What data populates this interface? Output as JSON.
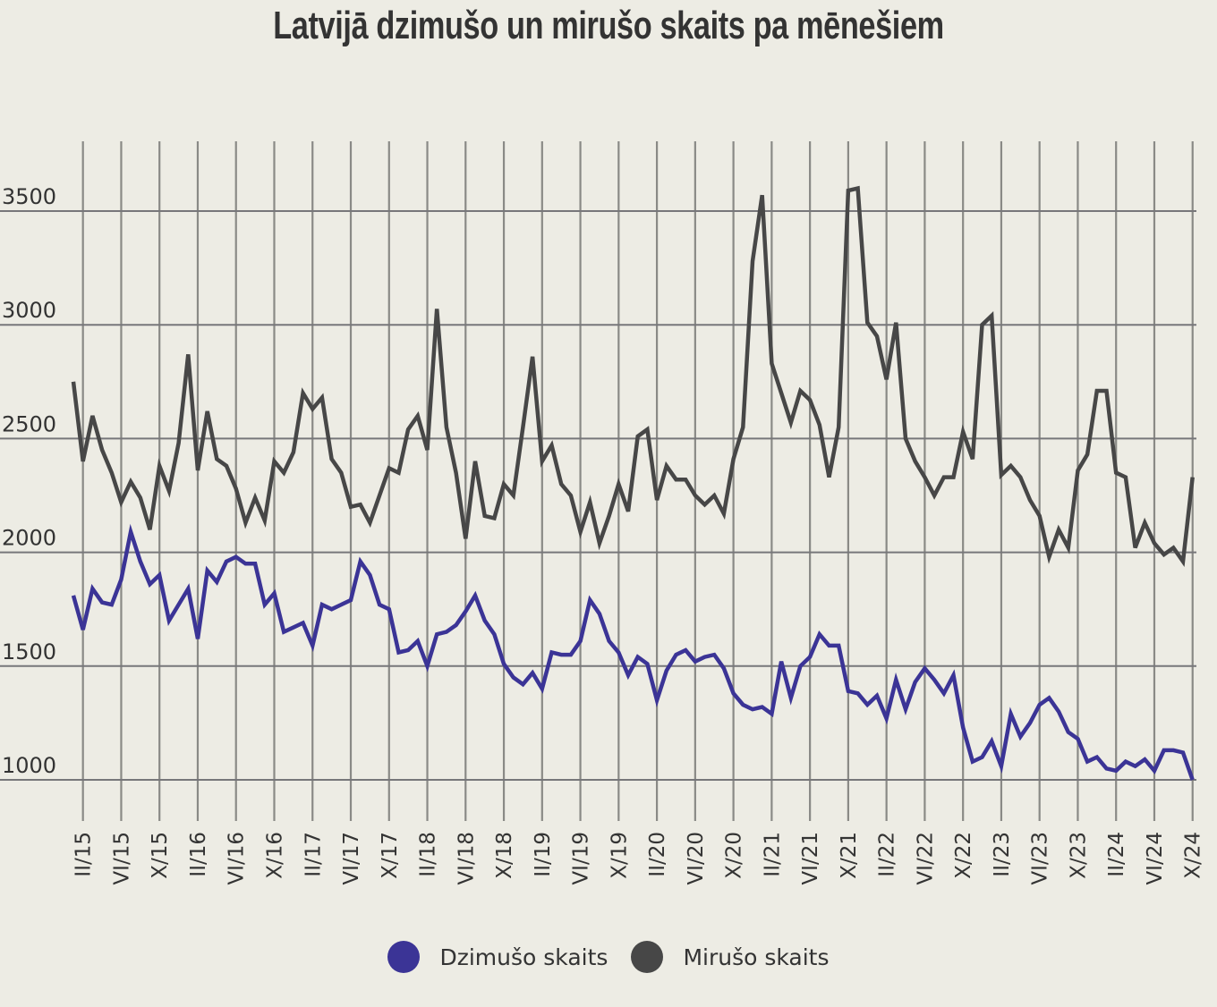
{
  "chart_data": {
    "type": "line",
    "title": "Latvijā dzimušo un mirušo skaits pa mēnešiem",
    "xlabel": "",
    "ylabel": "",
    "ylim": [
      800,
      3800
    ],
    "yticks": [
      1000,
      1500,
      2000,
      2500,
      3000,
      3500
    ],
    "grid": true,
    "legend_position": "bottom-center",
    "x_start": "I/15",
    "x_end": "X/24",
    "xtick_labels": [
      "II/15",
      "VI/15",
      "X/15",
      "II/16",
      "VI/16",
      "X/16",
      "II/17",
      "VI/17",
      "X/17",
      "II/18",
      "VI/18",
      "X/18",
      "II/19",
      "VI/19",
      "X/19",
      "II/20",
      "VI/20",
      "X/20",
      "II/21",
      "VI/21",
      "X/21",
      "II/22",
      "VI/22",
      "X/22",
      "II/23",
      "VI/23",
      "X/23",
      "II/24",
      "VI/24",
      "X/24"
    ],
    "series": [
      {
        "name": "Dzimušo skaits",
        "color": "#3b3496",
        "values": [
          1810,
          1660,
          1840,
          1780,
          1770,
          1880,
          2090,
          1960,
          1860,
          1900,
          1700,
          1770,
          1840,
          1620,
          1920,
          1870,
          1960,
          1980,
          1950,
          1950,
          1770,
          1820,
          1650,
          1670,
          1690,
          1590,
          1770,
          1750,
          1770,
          1790,
          1960,
          1900,
          1770,
          1750,
          1560,
          1570,
          1610,
          1500,
          1640,
          1650,
          1680,
          1740,
          1810,
          1700,
          1640,
          1510,
          1450,
          1420,
          1470,
          1400,
          1560,
          1550,
          1550,
          1610,
          1790,
          1730,
          1610,
          1560,
          1460,
          1540,
          1510,
          1350,
          1480,
          1550,
          1570,
          1520,
          1540,
          1550,
          1490,
          1380,
          1330,
          1310,
          1320,
          1290,
          1520,
          1360,
          1500,
          1540,
          1640,
          1590,
          1590,
          1390,
          1380,
          1330,
          1370,
          1270,
          1440,
          1310,
          1430,
          1490,
          1440,
          1380,
          1460,
          1230,
          1080,
          1100,
          1170,
          1060,
          1290,
          1190,
          1250,
          1330,
          1360,
          1300,
          1210,
          1180,
          1080,
          1100,
          1050,
          1040,
          1080,
          1060,
          1090,
          1040,
          1130,
          1130,
          1120,
          1000
        ]
      },
      {
        "name": "Mirušo skaits",
        "color": "#474747",
        "values": [
          2750,
          2400,
          2600,
          2450,
          2350,
          2220,
          2310,
          2240,
          2100,
          2380,
          2270,
          2480,
          2870,
          2360,
          2620,
          2410,
          2380,
          2280,
          2130,
          2240,
          2140,
          2400,
          2350,
          2440,
          2700,
          2630,
          2680,
          2410,
          2350,
          2200,
          2210,
          2130,
          2250,
          2370,
          2350,
          2540,
          2600,
          2450,
          3070,
          2550,
          2350,
          2060,
          2400,
          2160,
          2150,
          2300,
          2250,
          2550,
          2860,
          2400,
          2470,
          2300,
          2250,
          2090,
          2220,
          2040,
          2160,
          2300,
          2180,
          2510,
          2540,
          2230,
          2380,
          2320,
          2320,
          2250,
          2210,
          2250,
          2170,
          2410,
          2550,
          3280,
          3570,
          2830,
          2700,
          2570,
          2710,
          2670,
          2560,
          2330,
          2550,
          3590,
          3600,
          3010,
          2950,
          2760,
          3010,
          2500,
          2400,
          2330,
          2250,
          2330,
          2330,
          2530,
          2410,
          3000,
          3040,
          2340,
          2380,
          2330,
          2230,
          2160,
          1980,
          2100,
          2020,
          2360,
          2430,
          2710,
          2710,
          2350,
          2330,
          2020,
          2130,
          2040,
          1990,
          2020,
          1960,
          2330
        ]
      }
    ]
  }
}
